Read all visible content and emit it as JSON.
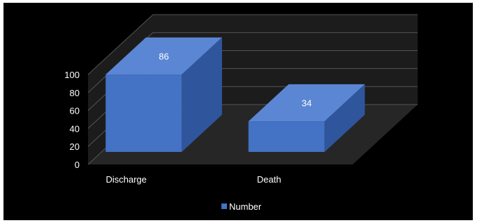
{
  "chart_data": {
    "type": "bar",
    "style": "3d-column",
    "categories": [
      "Discharge",
      "Death"
    ],
    "series": [
      {
        "name": "Number",
        "values": [
          86,
          34
        ]
      }
    ],
    "data_labels": [
      "86",
      "34"
    ],
    "yticks": [
      "0",
      "20",
      "40",
      "60",
      "80",
      "100"
    ],
    "ylim": [
      0,
      100
    ],
    "title": "",
    "xlabel": "",
    "ylabel": "",
    "grid": true,
    "legend": "bottom",
    "colors": {
      "background": "#000000",
      "bar_front": "#4472C4",
      "bar_top": "#5b86d4",
      "bar_side": "#2f559c",
      "floor": "#262626",
      "wall": "#1c1c1c",
      "grid": "#555555",
      "text": "#ffffff"
    }
  }
}
